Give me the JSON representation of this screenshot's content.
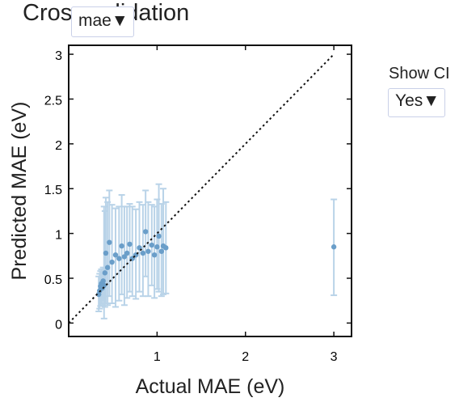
{
  "title": "Cross validation",
  "metric_dropdown": {
    "selected": "mae"
  },
  "ci_control": {
    "label": "Show CI",
    "selected": "Yes"
  },
  "chart_data": {
    "type": "scatter",
    "xlabel": "Actual MAE (eV)",
    "ylabel": "Predicted MAE (eV)",
    "xlim": [
      0,
      3.2
    ],
    "ylim": [
      -0.15,
      3.1
    ],
    "xticks": [
      1,
      2,
      3
    ],
    "yticks": [
      0,
      0.5,
      1,
      1.5,
      2,
      2.5,
      3
    ],
    "ytick_labels": [
      "0",
      "0.5",
      "1",
      "1.5",
      "2",
      "2.5",
      "3"
    ],
    "reference_line": {
      "style": "dotted",
      "from": [
        0,
        0
      ],
      "to": [
        3,
        3
      ]
    },
    "point_color": "#6a9ec9",
    "errorbar_color": "#b9d3e8",
    "points": [
      {
        "x": 0.34,
        "y": 0.32,
        "lo": 0.13,
        "hi": 0.52
      },
      {
        "x": 0.35,
        "y": 0.36,
        "lo": 0.16,
        "hi": 0.55
      },
      {
        "x": 0.36,
        "y": 0.41,
        "lo": 0.19,
        "hi": 0.58
      },
      {
        "x": 0.37,
        "y": 0.44,
        "lo": 0.22,
        "hi": 0.6
      },
      {
        "x": 0.38,
        "y": 0.39,
        "lo": 0.2,
        "hi": 0.57
      },
      {
        "x": 0.39,
        "y": 0.47,
        "lo": 0.25,
        "hi": 0.62
      },
      {
        "x": 0.4,
        "y": 0.42,
        "lo": 0.05,
        "hi": 1.3
      },
      {
        "x": 0.41,
        "y": 0.56,
        "lo": 0.18,
        "hi": 1.25
      },
      {
        "x": 0.42,
        "y": 0.78,
        "lo": 0.22,
        "hi": 1.4
      },
      {
        "x": 0.44,
        "y": 0.62,
        "lo": 0.2,
        "hi": 1.35
      },
      {
        "x": 0.46,
        "y": 0.9,
        "lo": 0.3,
        "hi": 1.48
      },
      {
        "x": 0.49,
        "y": 0.68,
        "lo": 0.22,
        "hi": 1.32
      },
      {
        "x": 0.53,
        "y": 0.76,
        "lo": 0.18,
        "hi": 1.28
      },
      {
        "x": 0.57,
        "y": 0.72,
        "lo": 0.25,
        "hi": 1.3
      },
      {
        "x": 0.6,
        "y": 0.86,
        "lo": 0.32,
        "hi": 1.43
      },
      {
        "x": 0.63,
        "y": 0.74,
        "lo": 0.2,
        "hi": 1.3
      },
      {
        "x": 0.66,
        "y": 0.78,
        "lo": 0.28,
        "hi": 1.3
      },
      {
        "x": 0.69,
        "y": 0.88,
        "lo": 0.35,
        "hi": 1.33
      },
      {
        "x": 0.72,
        "y": 0.72,
        "lo": 0.3,
        "hi": 1.3
      },
      {
        "x": 0.76,
        "y": 0.76,
        "lo": 0.27,
        "hi": 1.27
      },
      {
        "x": 0.8,
        "y": 0.84,
        "lo": 0.35,
        "hi": 1.35
      },
      {
        "x": 0.84,
        "y": 0.78,
        "lo": 0.3,
        "hi": 1.32
      },
      {
        "x": 0.87,
        "y": 1.02,
        "lo": 0.52,
        "hi": 1.48
      },
      {
        "x": 0.9,
        "y": 0.8,
        "lo": 0.3,
        "hi": 1.35
      },
      {
        "x": 0.94,
        "y": 0.87,
        "lo": 0.42,
        "hi": 1.32
      },
      {
        "x": 0.97,
        "y": 0.76,
        "lo": 0.28,
        "hi": 1.3
      },
      {
        "x": 1.0,
        "y": 0.85,
        "lo": 0.38,
        "hi": 1.38
      },
      {
        "x": 1.02,
        "y": 0.97,
        "lo": 0.35,
        "hi": 1.55
      },
      {
        "x": 1.05,
        "y": 0.8,
        "lo": 0.3,
        "hi": 1.33
      },
      {
        "x": 1.07,
        "y": 0.86,
        "lo": 0.32,
        "hi": 1.5
      },
      {
        "x": 1.1,
        "y": 0.84,
        "lo": 0.33,
        "hi": 1.35
      },
      {
        "x": 3.0,
        "y": 0.85,
        "lo": 0.31,
        "hi": 1.38
      }
    ]
  }
}
